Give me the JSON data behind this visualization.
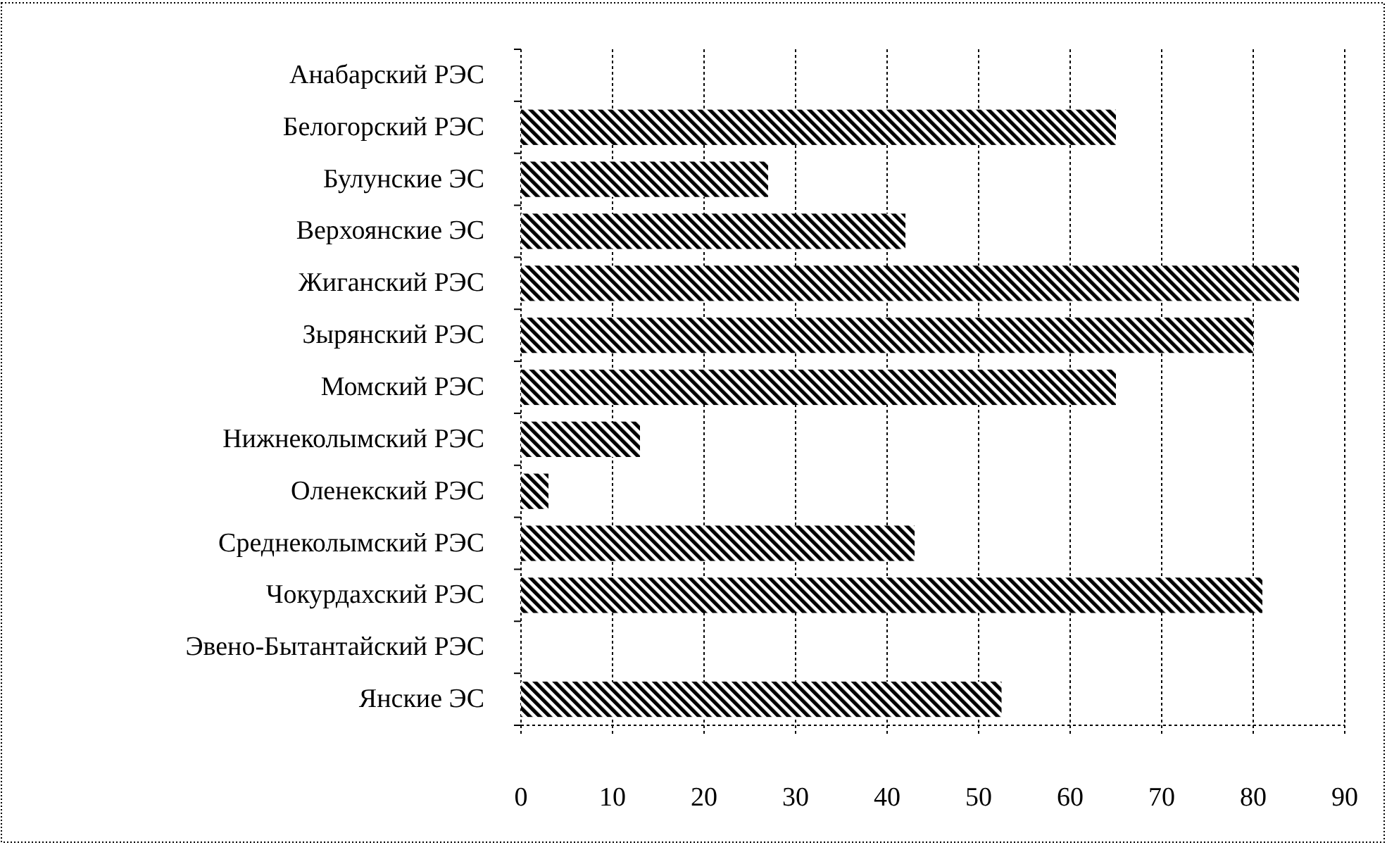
{
  "chart_data": {
    "type": "bar",
    "orientation": "horizontal",
    "categories": [
      "Анабарский РЭС",
      "Белогорский РЭС",
      "Булунские ЭС",
      "Верхоянские ЭС",
      "Жиганский РЭС",
      "Зырянский РЭС",
      "Момский РЭС",
      "Нижнеколымский РЭС",
      "Оленекский РЭС",
      "Среднеколымский РЭС",
      "Чокурдахский РЭС",
      "Эвено-Бытантайский РЭС",
      "Янские ЭС"
    ],
    "values": [
      0,
      65,
      27,
      42,
      85,
      80,
      65,
      13,
      3,
      43,
      81,
      0,
      52.5
    ],
    "color": "#000000",
    "xlim": [
      0,
      90
    ],
    "xticks": [
      0,
      10,
      20,
      30,
      40,
      50,
      60,
      70,
      80,
      90
    ],
    "grid": "x"
  }
}
